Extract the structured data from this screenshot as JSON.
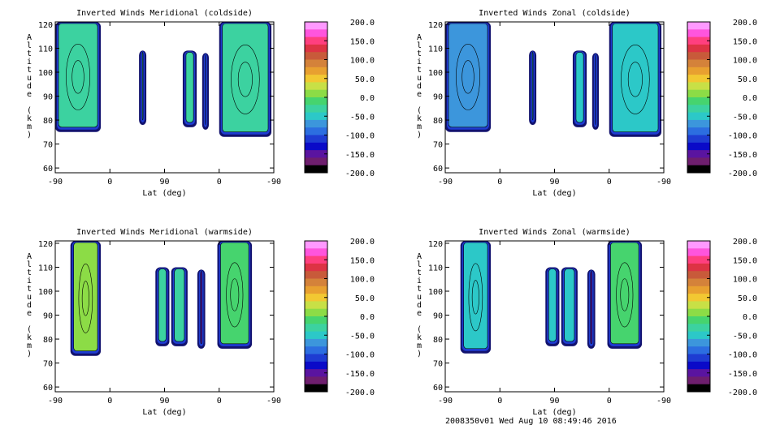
{
  "footer": "2008350v01 Wed Aug 10 08:49:46 2016",
  "colorbar": {
    "ticks": [
      "200.0",
      "150.0",
      "100.0",
      "50.0",
      "0.0",
      "-50.0",
      "-100.0",
      "-150.0",
      "-200.0"
    ],
    "colors": [
      "#ff99ff",
      "#ff55dd",
      "#ff3f7f",
      "#dd3344",
      "#c85a3a",
      "#d4823a",
      "#e8a030",
      "#f2c832",
      "#c8e046",
      "#8cdc46",
      "#46d46e",
      "#3cd2a0",
      "#2cc8c8",
      "#3c96dc",
      "#2c6ee0",
      "#1e3cd2",
      "#0a0ac8",
      "#5a14a0",
      "#6e1e6e",
      "#000000"
    ]
  },
  "chart_data": [
    {
      "type": "heatmap",
      "title": "Inverted Winds Meridional (coldside)",
      "xlabel": "Lat (deg)",
      "ylabel": "Altitude (km)",
      "xticks": [
        "-90",
        "0",
        "90",
        "0",
        "-90"
      ],
      "yticks": [
        "60",
        "70",
        "80",
        "90",
        "100",
        "110",
        "120"
      ],
      "ylim": [
        58,
        121
      ],
      "zrange": [
        -200,
        200
      ],
      "regions": [
        {
          "x": [
            -90,
            -15
          ],
          "y": [
            75,
            121
          ],
          "value": -20
        },
        {
          "x": [
            48,
            60
          ],
          "y": [
            78,
            109
          ],
          "value": -30
        },
        {
          "x": [
            120,
            143
          ],
          "y": [
            77,
            109
          ],
          "value": -30
        },
        {
          "x": [
            152,
            163
          ],
          "y": [
            76,
            108
          ],
          "value": -140
        },
        {
          "x": [
            180,
            266
          ],
          "y": [
            73,
            121
          ],
          "value": -20
        }
      ]
    },
    {
      "type": "heatmap",
      "title": "Inverted Winds Zonal (coldside)",
      "xlabel": "Lat (deg)",
      "ylabel": "Altitude (km)",
      "xticks": [
        "-90",
        "0",
        "90",
        "0",
        "-90"
      ],
      "yticks": [
        "60",
        "70",
        "80",
        "90",
        "100",
        "110",
        "120"
      ],
      "ylim": [
        58,
        121
      ],
      "zrange": [
        -200,
        200
      ],
      "regions": [
        {
          "x": [
            -90,
            -15
          ],
          "y": [
            75,
            121
          ],
          "value": -60
        },
        {
          "x": [
            48,
            60
          ],
          "y": [
            78,
            109
          ],
          "value": -40
        },
        {
          "x": [
            120,
            143
          ],
          "y": [
            77,
            109
          ],
          "value": -40
        },
        {
          "x": [
            152,
            163
          ],
          "y": [
            76,
            108
          ],
          "value": -140
        },
        {
          "x": [
            180,
            266
          ],
          "y": [
            73,
            121
          ],
          "value": -50
        }
      ]
    },
    {
      "type": "heatmap",
      "title": "Inverted Winds Meridional (warmside)",
      "xlabel": "Lat (deg)",
      "ylabel": "Altitude (km)",
      "xticks": [
        "-90",
        "0",
        "90",
        "0",
        "-90"
      ],
      "yticks": [
        "60",
        "70",
        "80",
        "90",
        "100",
        "110",
        "120"
      ],
      "ylim": [
        58,
        121
      ],
      "zrange": [
        -200,
        200
      ],
      "regions": [
        {
          "x": [
            -65,
            -15
          ],
          "y": [
            73,
            121
          ],
          "value": 10
        },
        {
          "x": [
            75,
            98
          ],
          "y": [
            77,
            110
          ],
          "value": -30
        },
        {
          "x": [
            101,
            128
          ],
          "y": [
            77,
            110
          ],
          "value": -30
        },
        {
          "x": [
            144,
            157
          ],
          "y": [
            76,
            109
          ],
          "value": -140
        },
        {
          "x": [
            177,
            234
          ],
          "y": [
            76,
            121
          ],
          "value": -10
        }
      ]
    },
    {
      "type": "heatmap",
      "title": "Inverted Winds Zonal (warmside)",
      "xlabel": "Lat (deg)",
      "ylabel": "Altitude (km)",
      "xticks": [
        "-90",
        "0",
        "90",
        "0",
        "-90"
      ],
      "yticks": [
        "60",
        "70",
        "80",
        "90",
        "100",
        "110",
        "120"
      ],
      "ylim": [
        58,
        121
      ],
      "zrange": [
        -200,
        200
      ],
      "regions": [
        {
          "x": [
            -65,
            -15
          ],
          "y": [
            74,
            121
          ],
          "value": -50
        },
        {
          "x": [
            75,
            98
          ],
          "y": [
            77,
            110
          ],
          "value": -40
        },
        {
          "x": [
            101,
            128
          ],
          "y": [
            77,
            110
          ],
          "value": -40
        },
        {
          "x": [
            144,
            157
          ],
          "y": [
            76,
            109
          ],
          "value": -140
        },
        {
          "x": [
            177,
            234
          ],
          "y": [
            76,
            121
          ],
          "value": 0
        }
      ]
    }
  ]
}
